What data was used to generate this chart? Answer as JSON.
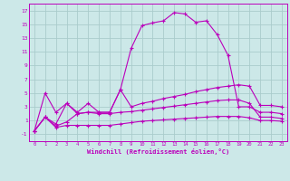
{
  "bg_color": "#cce8e8",
  "grid_color": "#aacccc",
  "line_color": "#bb00bb",
  "xlabel": "Windchill (Refroidissement éolien,°C)",
  "xlim": [
    -0.5,
    23.5
  ],
  "ylim": [
    -2,
    18
  ],
  "xticks": [
    0,
    1,
    2,
    3,
    4,
    5,
    6,
    7,
    8,
    9,
    10,
    11,
    12,
    13,
    14,
    15,
    16,
    17,
    18,
    19,
    20,
    21,
    22,
    23
  ],
  "yticks": [
    -1,
    1,
    3,
    5,
    7,
    9,
    11,
    13,
    15,
    17
  ],
  "line1_x": [
    0,
    1,
    2,
    3,
    4,
    5,
    6,
    7,
    8,
    9,
    10,
    11,
    12,
    13,
    14,
    15,
    16,
    17,
    18,
    19,
    20,
    21,
    22,
    23
  ],
  "line1_y": [
    -0.5,
    5.0,
    2.2,
    3.5,
    2.2,
    3.5,
    2.2,
    2.2,
    5.5,
    11.5,
    14.8,
    15.2,
    15.5,
    16.7,
    16.5,
    15.3,
    15.5,
    13.5,
    10.5,
    3.0,
    3.0,
    2.2,
    2.2,
    2.0
  ],
  "line2_x": [
    0,
    1,
    2,
    3,
    4,
    5,
    6,
    7,
    8,
    9,
    10,
    11,
    12,
    13,
    14,
    15,
    16,
    17,
    18,
    19,
    20,
    21,
    22,
    23
  ],
  "line2_y": [
    -0.5,
    1.5,
    0.5,
    3.5,
    2.0,
    2.2,
    2.2,
    2.2,
    5.5,
    3.0,
    3.5,
    3.8,
    4.2,
    4.5,
    4.8,
    5.2,
    5.5,
    5.8,
    6.0,
    6.2,
    6.0,
    3.2,
    3.2,
    3.0
  ],
  "line3_x": [
    0,
    1,
    2,
    3,
    4,
    5,
    6,
    7,
    8,
    9,
    10,
    11,
    12,
    13,
    14,
    15,
    16,
    17,
    18,
    19,
    20,
    21,
    22,
    23
  ],
  "line3_y": [
    -0.5,
    1.5,
    0.2,
    0.8,
    2.0,
    2.2,
    2.0,
    2.0,
    2.2,
    2.3,
    2.5,
    2.7,
    2.9,
    3.1,
    3.3,
    3.5,
    3.7,
    3.9,
    4.0,
    4.0,
    3.5,
    1.5,
    1.5,
    1.3
  ],
  "line4_x": [
    0,
    1,
    2,
    3,
    4,
    5,
    6,
    7,
    8,
    9,
    10,
    11,
    12,
    13,
    14,
    15,
    16,
    17,
    18,
    19,
    20,
    21,
    22,
    23
  ],
  "line4_y": [
    -0.5,
    1.5,
    0.0,
    0.3,
    0.3,
    0.3,
    0.3,
    0.3,
    0.5,
    0.7,
    0.9,
    1.0,
    1.1,
    1.2,
    1.3,
    1.4,
    1.5,
    1.6,
    1.6,
    1.6,
    1.4,
    1.0,
    1.0,
    0.9
  ]
}
